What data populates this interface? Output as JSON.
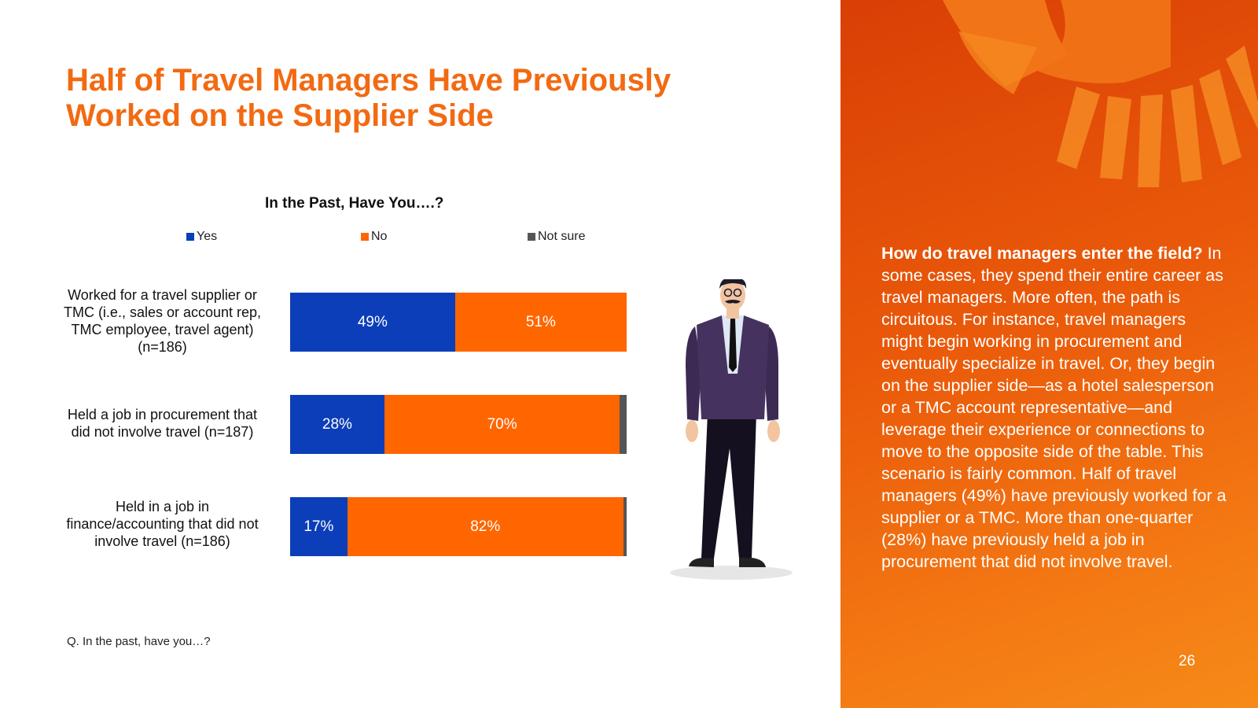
{
  "title_lines": [
    "Half of Travel Managers Have Previously",
    "Worked on the Supplier Side"
  ],
  "colors": {
    "yes": "#0b3eb8",
    "no": "#ff6600",
    "not_sure": "#555555",
    "accent": "#f26a12"
  },
  "chart_data": {
    "type": "bar",
    "orientation": "horizontal",
    "stacked": true,
    "title": "In the Past, Have You….?",
    "legend_position": "top",
    "categories": [
      "Worked for a travel supplier or TMC (i.e., sales or account rep, TMC employee, travel agent) (n=186)",
      "Held a job in procurement that did not involve travel (n=187)",
      "Held in a job in finance/accounting that did not involve travel (n=186)"
    ],
    "category_lines": [
      [
        "Worked for a travel supplier or",
        "TMC (i.e., sales or account rep,",
        "TMC employee, travel agent)",
        "(n=186)"
      ],
      [
        "Held a job in procurement that",
        "did not involve travel (n=187)"
      ],
      [
        "Held in a job in",
        "finance/accounting that did not",
        "involve travel (n=186)"
      ]
    ],
    "series": [
      {
        "name": "Yes",
        "values": [
          49,
          28,
          17
        ],
        "labels": [
          "49%",
          "28%",
          "17%"
        ],
        "color": "#0b3eb8"
      },
      {
        "name": "No",
        "values": [
          51,
          70,
          82
        ],
        "labels": [
          "51%",
          "70%",
          "82%"
        ],
        "color": "#ff6600"
      },
      {
        "name": "Not sure",
        "values": [
          0,
          2,
          1
        ],
        "labels": [
          "",
          "",
          ""
        ],
        "color": "#555555"
      }
    ],
    "xlim": [
      0,
      100
    ],
    "grid": false
  },
  "footnote": "Q. In the past, have you…?",
  "side_panel": {
    "lead": "How do travel managers enter the field?",
    "body": " In some cases, they spend their entire career as travel managers. More often, the path is circuitous. For instance, travel managers might begin working in procurement and eventually specialize in travel. Or, they begin on the supplier side—as a hotel salesperson or a TMC account representative—and leverage their experience or connections to move to the opposite side of the table. This scenario is fairly common. Half of travel managers (49%) have previously worked for a supplier or a TMC. More than one-quarter (28%) have previously held a job in procurement that did not involve travel.",
    "page_number": "26"
  },
  "illustration": {
    "icon": "businessman-illustration"
  }
}
